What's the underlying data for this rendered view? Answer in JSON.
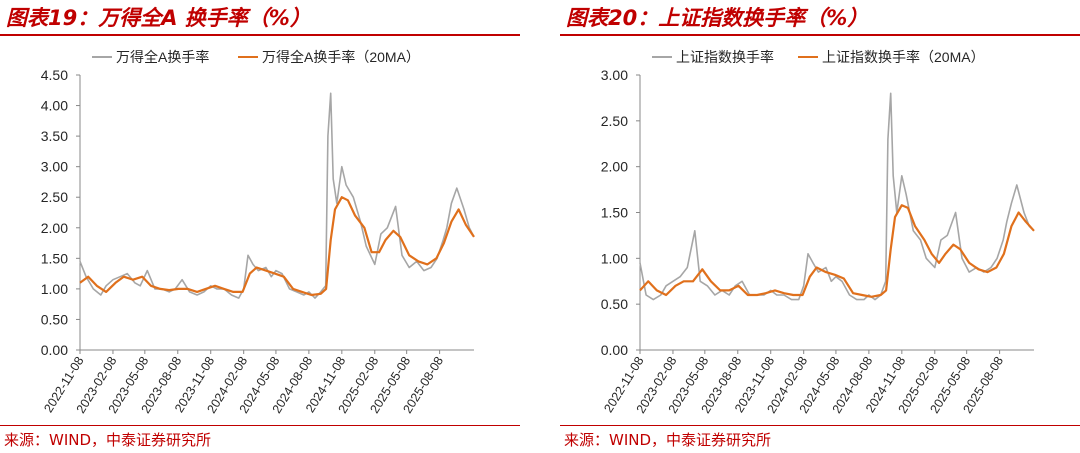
{
  "figures": [
    {
      "title": "图表19：万得全A 换手率（%）",
      "source": "来源：WIND，中泰证券研究所"
    },
    {
      "title": "图表20：上证指数换手率（%）",
      "source": "来源：WIND，中泰证券研究所"
    }
  ],
  "colors": {
    "raw": "#a6a6a6",
    "ma": "#e0701c",
    "axis": "#888888",
    "text": "#262626",
    "accent": "#c00000"
  },
  "chart_data": [
    {
      "type": "line",
      "title": "",
      "xlabel": "",
      "ylabel": "",
      "ylim": [
        0,
        4.5
      ],
      "yticks": [
        "0.00",
        "0.50",
        "1.00",
        "1.50",
        "2.00",
        "2.50",
        "3.00",
        "3.50",
        "4.00",
        "4.50"
      ],
      "x_tick_labels": [
        "2022-11-08",
        "2023-02-08",
        "2023-05-08",
        "2023-08-08",
        "2023-11-08",
        "2024-02-08",
        "2024-05-08",
        "2024-08-08",
        "2024-11-08",
        "2025-02-08",
        "2025-05-08",
        "2025-08-08"
      ],
      "x_start": "2022-11-08",
      "x_end": "2025-11-12",
      "legend": "top",
      "series": [
        {
          "name": "万得全A换手率",
          "x": [
            "2022-11-08",
            "2022-11-25",
            "2022-12-15",
            "2023-01-05",
            "2023-01-20",
            "2023-02-08",
            "2023-02-28",
            "2023-03-20",
            "2023-04-10",
            "2023-04-25",
            "2023-05-15",
            "2023-06-05",
            "2023-06-25",
            "2023-07-15",
            "2023-08-01",
            "2023-08-20",
            "2023-09-10",
            "2023-10-01",
            "2023-10-20",
            "2023-11-08",
            "2023-11-25",
            "2023-12-15",
            "2024-01-05",
            "2024-01-25",
            "2024-02-08",
            "2024-02-20",
            "2024-03-05",
            "2024-03-20",
            "2024-04-10",
            "2024-04-25",
            "2024-05-08",
            "2024-05-25",
            "2024-06-15",
            "2024-07-05",
            "2024-07-25",
            "2024-08-08",
            "2024-08-25",
            "2024-09-10",
            "2024-09-24",
            "2024-09-30",
            "2024-10-08",
            "2024-10-15",
            "2024-10-25",
            "2024-11-08",
            "2024-11-20",
            "2024-12-10",
            "2024-12-30",
            "2025-01-15",
            "2025-02-08",
            "2025-02-25",
            "2025-03-15",
            "2025-04-07",
            "2025-04-25",
            "2025-05-15",
            "2025-06-05",
            "2025-06-25",
            "2025-07-15",
            "2025-08-01",
            "2025-08-18",
            "2025-08-28",
            "2025-09-10",
            "2025-09-25",
            "2025-10-15",
            "2025-10-30",
            "2025-11-12"
          ],
          "values": [
            1.45,
            1.2,
            1.0,
            0.9,
            1.05,
            1.15,
            1.2,
            1.25,
            1.1,
            1.05,
            1.3,
            1.0,
            1.0,
            0.95,
            1.0,
            1.15,
            0.95,
            0.9,
            0.95,
            1.05,
            1.0,
            1.0,
            0.9,
            0.85,
            1.0,
            1.55,
            1.4,
            1.3,
            1.35,
            1.2,
            1.3,
            1.25,
            1.0,
            0.95,
            0.9,
            0.95,
            0.85,
            0.95,
            1.05,
            3.5,
            4.2,
            2.8,
            2.4,
            3.0,
            2.7,
            2.5,
            2.1,
            1.7,
            1.4,
            1.9,
            2.0,
            2.35,
            1.55,
            1.35,
            1.45,
            1.3,
            1.35,
            1.5,
            1.8,
            2.0,
            2.4,
            2.65,
            2.3,
            2.0,
            1.85
          ]
        },
        {
          "name": "万得全A换手率（20MA）",
          "x": [
            "2022-11-08",
            "2022-12-01",
            "2022-12-25",
            "2023-01-20",
            "2023-02-15",
            "2023-03-10",
            "2023-04-05",
            "2023-05-01",
            "2023-05-25",
            "2023-06-20",
            "2023-07-15",
            "2023-08-10",
            "2023-09-05",
            "2023-10-01",
            "2023-10-25",
            "2023-11-20",
            "2023-12-15",
            "2024-01-10",
            "2024-02-05",
            "2024-02-25",
            "2024-03-15",
            "2024-04-10",
            "2024-05-05",
            "2024-05-30",
            "2024-06-25",
            "2024-07-20",
            "2024-08-15",
            "2024-09-10",
            "2024-09-25",
            "2024-10-08",
            "2024-10-20",
            "2024-11-08",
            "2024-11-25",
            "2024-12-15",
            "2025-01-10",
            "2025-01-30",
            "2025-02-20",
            "2025-03-10",
            "2025-04-01",
            "2025-04-20",
            "2025-05-15",
            "2025-06-10",
            "2025-07-05",
            "2025-07-30",
            "2025-08-20",
            "2025-09-10",
            "2025-09-30",
            "2025-10-20",
            "2025-11-12"
          ],
          "values": [
            1.1,
            1.2,
            1.05,
            0.95,
            1.1,
            1.2,
            1.15,
            1.2,
            1.05,
            1.0,
            0.98,
            1.0,
            1.0,
            0.95,
            1.0,
            1.05,
            1.0,
            0.95,
            0.95,
            1.25,
            1.35,
            1.3,
            1.25,
            1.2,
            1.0,
            0.95,
            0.9,
            0.92,
            1.0,
            1.8,
            2.3,
            2.5,
            2.45,
            2.2,
            2.0,
            1.6,
            1.6,
            1.8,
            1.95,
            1.85,
            1.55,
            1.45,
            1.4,
            1.5,
            1.75,
            2.1,
            2.3,
            2.05,
            1.85
          ]
        }
      ]
    },
    {
      "type": "line",
      "title": "",
      "xlabel": "",
      "ylabel": "",
      "ylim": [
        0,
        3.0
      ],
      "yticks": [
        "0.00",
        "0.50",
        "1.00",
        "1.50",
        "2.00",
        "2.50",
        "3.00"
      ],
      "x_tick_labels": [
        "2022-11-08",
        "2023-02-08",
        "2023-05-08",
        "2023-08-08",
        "2023-11-08",
        "2024-02-08",
        "2024-05-08",
        "2024-08-08",
        "2024-11-08",
        "2025-02-08",
        "2025-05-08",
        "2025-08-08"
      ],
      "x_start": "2022-11-08",
      "x_end": "2025-11-12",
      "legend": "top",
      "series": [
        {
          "name": "上证指数换手率",
          "x": [
            "2022-11-08",
            "2022-11-25",
            "2022-12-15",
            "2023-01-05",
            "2023-01-20",
            "2023-02-08",
            "2023-02-28",
            "2023-03-20",
            "2023-04-10",
            "2023-04-25",
            "2023-05-15",
            "2023-06-05",
            "2023-06-25",
            "2023-07-15",
            "2023-08-01",
            "2023-08-20",
            "2023-09-10",
            "2023-10-01",
            "2023-10-20",
            "2023-11-08",
            "2023-11-25",
            "2023-12-15",
            "2024-01-05",
            "2024-01-25",
            "2024-02-08",
            "2024-02-20",
            "2024-03-05",
            "2024-03-20",
            "2024-04-10",
            "2024-04-25",
            "2024-05-08",
            "2024-05-25",
            "2024-06-15",
            "2024-07-05",
            "2024-07-25",
            "2024-08-08",
            "2024-08-25",
            "2024-09-10",
            "2024-09-24",
            "2024-09-30",
            "2024-10-08",
            "2024-10-15",
            "2024-10-25",
            "2024-11-08",
            "2024-11-20",
            "2024-12-10",
            "2024-12-30",
            "2025-01-15",
            "2025-02-08",
            "2025-02-25",
            "2025-03-15",
            "2025-04-07",
            "2025-04-25",
            "2025-05-15",
            "2025-06-05",
            "2025-06-25",
            "2025-07-15",
            "2025-08-01",
            "2025-08-18",
            "2025-08-28",
            "2025-09-10",
            "2025-09-25",
            "2025-10-15",
            "2025-10-30",
            "2025-11-12"
          ],
          "values": [
            0.95,
            0.6,
            0.55,
            0.6,
            0.7,
            0.75,
            0.8,
            0.9,
            1.3,
            0.75,
            0.7,
            0.6,
            0.65,
            0.6,
            0.7,
            0.75,
            0.6,
            0.6,
            0.6,
            0.65,
            0.6,
            0.6,
            0.55,
            0.55,
            0.7,
            1.05,
            0.95,
            0.85,
            0.9,
            0.75,
            0.8,
            0.75,
            0.6,
            0.55,
            0.55,
            0.6,
            0.55,
            0.6,
            0.75,
            2.3,
            2.8,
            1.9,
            1.5,
            1.9,
            1.7,
            1.3,
            1.2,
            1.0,
            0.9,
            1.2,
            1.25,
            1.5,
            1.0,
            0.85,
            0.9,
            0.85,
            0.9,
            1.0,
            1.2,
            1.4,
            1.6,
            1.8,
            1.5,
            1.35,
            1.3
          ]
        },
        {
          "name": "上证指数换手率（20MA）",
          "x": [
            "2022-11-08",
            "2022-12-01",
            "2022-12-25",
            "2023-01-20",
            "2023-02-15",
            "2023-03-10",
            "2023-04-05",
            "2023-05-01",
            "2023-05-25",
            "2023-06-20",
            "2023-07-15",
            "2023-08-10",
            "2023-09-05",
            "2023-10-01",
            "2023-10-25",
            "2023-11-20",
            "2023-12-15",
            "2024-01-10",
            "2024-02-05",
            "2024-02-25",
            "2024-03-15",
            "2024-04-10",
            "2024-05-05",
            "2024-05-30",
            "2024-06-25",
            "2024-07-20",
            "2024-08-15",
            "2024-09-10",
            "2024-09-25",
            "2024-10-08",
            "2024-10-20",
            "2024-11-08",
            "2024-11-25",
            "2024-12-15",
            "2025-01-10",
            "2025-01-30",
            "2025-02-20",
            "2025-03-10",
            "2025-04-01",
            "2025-04-20",
            "2025-05-15",
            "2025-06-10",
            "2025-07-05",
            "2025-07-30",
            "2025-08-20",
            "2025-09-10",
            "2025-09-30",
            "2025-10-20",
            "2025-11-12"
          ],
          "values": [
            0.65,
            0.75,
            0.65,
            0.6,
            0.7,
            0.75,
            0.75,
            0.88,
            0.75,
            0.65,
            0.65,
            0.7,
            0.6,
            0.6,
            0.62,
            0.65,
            0.62,
            0.6,
            0.6,
            0.8,
            0.9,
            0.85,
            0.82,
            0.78,
            0.62,
            0.6,
            0.58,
            0.6,
            0.65,
            1.1,
            1.45,
            1.58,
            1.55,
            1.35,
            1.2,
            1.05,
            0.95,
            1.05,
            1.15,
            1.1,
            0.95,
            0.88,
            0.85,
            0.9,
            1.05,
            1.35,
            1.5,
            1.4,
            1.3
          ]
        }
      ]
    }
  ]
}
